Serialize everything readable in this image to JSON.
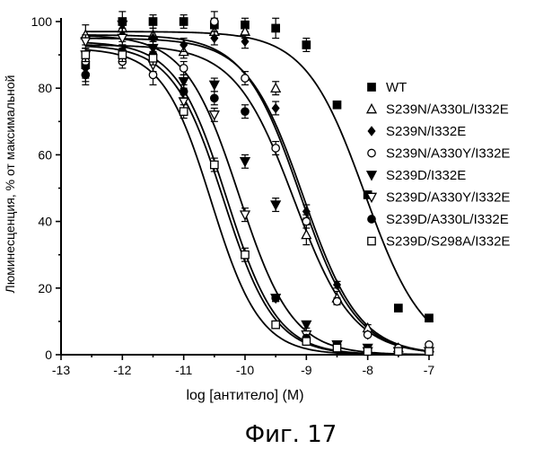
{
  "chart_data": {
    "type": "scatter",
    "title": "",
    "xlabel": "log [антитело] (M)",
    "ylabel": "Люминесценция, % от максимальной",
    "xlim": [
      -13,
      -7
    ],
    "ylim": [
      0,
      100
    ],
    "xticks": [
      -13,
      -12,
      -11,
      -10,
      -9,
      -8,
      -7
    ],
    "yticks": [
      0,
      20,
      40,
      60,
      80,
      100
    ],
    "legend_position": "right",
    "grid": false,
    "series": [
      {
        "name": "WT",
        "marker": "square-filled",
        "hill": 0.9,
        "curve": {
          "top": 97,
          "bottom": 0,
          "logec50": -8.05
        },
        "points": [
          {
            "x": -12.6,
            "y": 87,
            "err": 5
          },
          {
            "x": -12,
            "y": 100,
            "err": 3
          },
          {
            "x": -11.5,
            "y": 100,
            "err": 2
          },
          {
            "x": -11,
            "y": 100,
            "err": 2
          },
          {
            "x": -10.5,
            "y": 99,
            "err": 2
          },
          {
            "x": -10,
            "y": 99,
            "err": 2
          },
          {
            "x": -9.5,
            "y": 98,
            "err": 3
          },
          {
            "x": -9,
            "y": 93,
            "err": 2
          },
          {
            "x": -8.5,
            "y": 75,
            "err": 0
          },
          {
            "x": -8,
            "y": 48,
            "err": 0
          },
          {
            "x": -7.5,
            "y": 14,
            "err": 0
          },
          {
            "x": -7,
            "y": 11,
            "err": 1
          }
        ]
      },
      {
        "name": "S239N/A330L/I332E",
        "marker": "triangle-up-open",
        "hill": 0.95,
        "curve": {
          "top": 96,
          "bottom": 0,
          "logec50": -9.1
        },
        "points": [
          {
            "x": -12.6,
            "y": 96,
            "err": 3
          },
          {
            "x": -12,
            "y": 98,
            "err": 2
          },
          {
            "x": -11.5,
            "y": 96,
            "err": 2
          },
          {
            "x": -11,
            "y": 91,
            "err": 2
          },
          {
            "x": -10.5,
            "y": 97,
            "err": 2
          },
          {
            "x": -10,
            "y": 97,
            "err": 2
          },
          {
            "x": -9.5,
            "y": 80,
            "err": 2
          },
          {
            "x": -9,
            "y": 36,
            "err": 3
          },
          {
            "x": -8.5,
            "y": 17,
            "err": 2
          },
          {
            "x": -8,
            "y": 8,
            "err": 1
          },
          {
            "x": -7.5,
            "y": 2,
            "err": 0
          },
          {
            "x": -7,
            "y": 2,
            "err": 0
          }
        ]
      },
      {
        "name": "S239N/I332E",
        "marker": "diamond-filled",
        "hill": 0.95,
        "curve": {
          "top": 95,
          "bottom": 0,
          "logec50": -9.05
        },
        "points": [
          {
            "x": -12.6,
            "y": 86,
            "err": 3
          },
          {
            "x": -12,
            "y": 96,
            "err": 2
          },
          {
            "x": -11.5,
            "y": 95,
            "err": 2
          },
          {
            "x": -11,
            "y": 93,
            "err": 2
          },
          {
            "x": -10.5,
            "y": 95,
            "err": 2
          },
          {
            "x": -10,
            "y": 94,
            "err": 2
          },
          {
            "x": -9.5,
            "y": 74,
            "err": 2
          },
          {
            "x": -9,
            "y": 43,
            "err": 2
          },
          {
            "x": -8.5,
            "y": 21,
            "err": 1
          },
          {
            "x": -8,
            "y": 6,
            "err": 0
          },
          {
            "x": -7.5,
            "y": 2,
            "err": 0
          },
          {
            "x": -7,
            "y": 1,
            "err": 0
          }
        ]
      },
      {
        "name": "S239N/A330Y/I332E",
        "marker": "circle-open",
        "hill": 0.9,
        "curve": {
          "top": 93,
          "bottom": 0,
          "logec50": -9.2
        },
        "points": [
          {
            "x": -12.6,
            "y": 88,
            "err": 2
          },
          {
            "x": -12,
            "y": 88,
            "err": 2
          },
          {
            "x": -11.5,
            "y": 84,
            "err": 3
          },
          {
            "x": -11,
            "y": 86,
            "err": 2
          },
          {
            "x": -10.5,
            "y": 100,
            "err": 3
          },
          {
            "x": -10,
            "y": 83,
            "err": 2
          },
          {
            "x": -9.5,
            "y": 62,
            "err": 2
          },
          {
            "x": -9,
            "y": 40,
            "err": 2
          },
          {
            "x": -8.5,
            "y": 16,
            "err": 1
          },
          {
            "x": -8,
            "y": 6,
            "err": 0
          },
          {
            "x": -7.5,
            "y": 2,
            "err": 0
          },
          {
            "x": -7,
            "y": 3,
            "err": 0
          }
        ]
      },
      {
        "name": "S239D/I332E",
        "marker": "triangle-down-filled",
        "hill": 1.0,
        "curve": {
          "top": 96,
          "bottom": 0,
          "logec50": -10.1
        },
        "points": [
          {
            "x": -12.6,
            "y": 90,
            "err": 2
          },
          {
            "x": -12,
            "y": 99,
            "err": 2
          },
          {
            "x": -11.5,
            "y": 92,
            "err": 2
          },
          {
            "x": -11,
            "y": 82,
            "err": 2
          },
          {
            "x": -10.5,
            "y": 81,
            "err": 2
          },
          {
            "x": -10,
            "y": 58,
            "err": 2
          },
          {
            "x": -9.5,
            "y": 45,
            "err": 2
          },
          {
            "x": -9,
            "y": 9,
            "err": 1
          },
          {
            "x": -8.5,
            "y": 3,
            "err": 0
          },
          {
            "x": -8,
            "y": 2,
            "err": 0
          },
          {
            "x": -7.5,
            "y": 1,
            "err": 0
          },
          {
            "x": -7,
            "y": 1,
            "err": 0
          }
        ]
      },
      {
        "name": "S239D/A330Y/I332E",
        "marker": "triangle-down-open",
        "hill": 1.05,
        "curve": {
          "top": 93,
          "bottom": 0,
          "logec50": -10.35
        },
        "points": [
          {
            "x": -12.6,
            "y": 94,
            "err": 2
          },
          {
            "x": -12,
            "y": 95,
            "err": 2
          },
          {
            "x": -11.5,
            "y": 87,
            "err": 2
          },
          {
            "x": -11,
            "y": 76,
            "err": 2
          },
          {
            "x": -10.5,
            "y": 72,
            "err": 2
          },
          {
            "x": -10,
            "y": 42,
            "err": 2
          },
          {
            "x": -9.5,
            "y": 17,
            "err": 1
          },
          {
            "x": -9,
            "y": 6,
            "err": 0
          },
          {
            "x": -8.5,
            "y": 3,
            "err": 0
          },
          {
            "x": -8,
            "y": 1,
            "err": 0
          },
          {
            "x": -7.5,
            "y": 1,
            "err": 0
          },
          {
            "x": -7,
            "y": 1,
            "err": 0
          }
        ]
      },
      {
        "name": "S239D/A330L/I332E",
        "marker": "circle-filled",
        "hill": 1.05,
        "curve": {
          "top": 94,
          "bottom": 0,
          "logec50": -10.3
        },
        "points": [
          {
            "x": -12.6,
            "y": 84,
            "err": 3
          },
          {
            "x": -12,
            "y": 91,
            "err": 2
          },
          {
            "x": -11.5,
            "y": 90,
            "err": 2
          },
          {
            "x": -11,
            "y": 79,
            "err": 2
          },
          {
            "x": -10.5,
            "y": 77,
            "err": 2
          },
          {
            "x": -10,
            "y": 73,
            "err": 2
          },
          {
            "x": -9.5,
            "y": 17,
            "err": 1
          },
          {
            "x": -9,
            "y": 5,
            "err": 0
          },
          {
            "x": -8.5,
            "y": 3,
            "err": 0
          },
          {
            "x": -8,
            "y": 1,
            "err": 0
          },
          {
            "x": -7.5,
            "y": 1,
            "err": 0
          },
          {
            "x": -7,
            "y": 1,
            "err": 0
          }
        ]
      },
      {
        "name": "S239D/S298A/I332E",
        "marker": "square-open",
        "hill": 1.1,
        "curve": {
          "top": 92,
          "bottom": 0,
          "logec50": -10.55
        },
        "points": [
          {
            "x": -12.6,
            "y": 90,
            "err": 2
          },
          {
            "x": -12,
            "y": 90,
            "err": 2
          },
          {
            "x": -11.5,
            "y": 89,
            "err": 2
          },
          {
            "x": -11,
            "y": 73,
            "err": 2
          },
          {
            "x": -10.5,
            "y": 57,
            "err": 2
          },
          {
            "x": -10,
            "y": 30,
            "err": 2
          },
          {
            "x": -9.5,
            "y": 9,
            "err": 1
          },
          {
            "x": -9,
            "y": 4,
            "err": 0
          },
          {
            "x": -8.5,
            "y": 2,
            "err": 0
          },
          {
            "x": -8,
            "y": 1,
            "err": 0
          },
          {
            "x": -7.5,
            "y": 1,
            "err": 0
          },
          {
            "x": -7,
            "y": 1,
            "err": 0
          }
        ]
      }
    ]
  },
  "figure": {
    "caption": "Фиг. 17"
  }
}
